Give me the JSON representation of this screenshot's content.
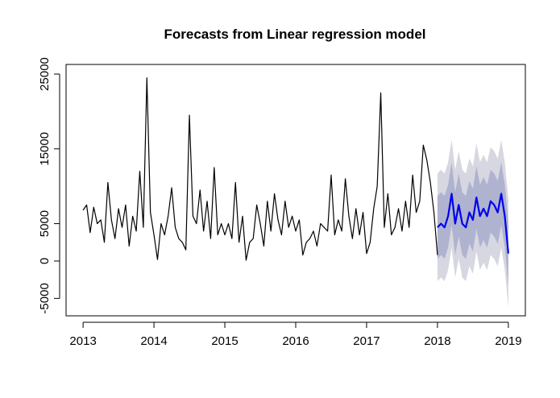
{
  "chart_data": {
    "type": "line",
    "title": "Forecasts from Linear regression model",
    "xlim": [
      2012.76,
      2019.24
    ],
    "ylim": [
      -7330,
      26290
    ],
    "xticks": [
      2013,
      2014,
      2015,
      2016,
      2017,
      2018,
      2019
    ],
    "yticks": [
      -5000,
      0,
      5000,
      15000,
      25000
    ],
    "series": [
      {
        "color": "#000000",
        "x": [
          2013.0,
          2013.05,
          2013.1,
          2013.15,
          2013.2,
          2013.25,
          2013.3,
          2013.35,
          2013.4,
          2013.45,
          2013.5,
          2013.55,
          2013.6,
          2013.65,
          2013.7,
          2013.75,
          2013.8,
          2013.85,
          2013.9,
          2013.95,
          2014.0,
          2014.05,
          2014.1,
          2014.15,
          2014.2,
          2014.25,
          2014.3,
          2014.35,
          2014.4,
          2014.45,
          2014.5,
          2014.55,
          2014.6,
          2014.65,
          2014.7,
          2014.75,
          2014.8,
          2014.85,
          2014.9,
          2014.95,
          2015.0,
          2015.05,
          2015.1,
          2015.15,
          2015.2,
          2015.25,
          2015.3,
          2015.35,
          2015.4,
          2015.45,
          2015.5,
          2015.55,
          2015.6,
          2015.65,
          2015.7,
          2015.75,
          2015.8,
          2015.85,
          2015.9,
          2015.95,
          2016.0,
          2016.05,
          2016.1,
          2016.15,
          2016.2,
          2016.25,
          2016.3,
          2016.35,
          2016.4,
          2016.45,
          2016.5,
          2016.55,
          2016.6,
          2016.65,
          2016.7,
          2016.75,
          2016.8,
          2016.85,
          2016.9,
          2016.95,
          2017.0,
          2017.05,
          2017.1,
          2017.15,
          2017.2,
          2017.25,
          2017.3,
          2017.35,
          2017.4,
          2017.45,
          2017.5,
          2017.55,
          2017.6,
          2017.65,
          2017.7,
          2017.75,
          2017.8,
          2017.85,
          2017.9,
          2017.95,
          2018.0
        ],
        "values": [
          6800,
          7500,
          3800,
          7200,
          5000,
          5500,
          2500,
          10500,
          5500,
          3000,
          7000,
          4500,
          7500,
          2000,
          6000,
          4000,
          12000,
          4500,
          24500,
          6500,
          3500,
          200,
          5000,
          3500,
          6000,
          9800,
          4500,
          3000,
          2500,
          1500,
          19500,
          6000,
          5000,
          9500,
          4000,
          8000,
          3000,
          12500,
          3500,
          5000,
          3500,
          5000,
          3000,
          10500,
          2500,
          6000,
          100,
          2500,
          3000,
          7500,
          5000,
          2000,
          8000,
          4000,
          9000,
          5500,
          3500,
          8000,
          4500,
          6000,
          4000,
          5500,
          800,
          2500,
          3000,
          4000,
          2000,
          5000,
          4500,
          4000,
          11500,
          3500,
          5500,
          4000,
          11000,
          6000,
          3000,
          7000,
          3500,
          6500,
          1000,
          2500,
          7000,
          10000,
          22500,
          4500,
          9000,
          3500,
          4500,
          7000,
          4000,
          8000,
          4500,
          11500,
          6500,
          8000,
          15500,
          13500,
          10500,
          6500,
          800
        ]
      },
      {
        "color": "#0000ee",
        "x": [
          2018.0,
          2018.05,
          2018.1,
          2018.15,
          2018.2,
          2018.25,
          2018.3,
          2018.35,
          2018.4,
          2018.45,
          2018.5,
          2018.55,
          2018.6,
          2018.65,
          2018.7,
          2018.75,
          2018.8,
          2018.85,
          2018.9,
          2018.95,
          2019.0
        ],
        "values": [
          4500,
          5000,
          4500,
          6000,
          9000,
          5000,
          7500,
          5000,
          4500,
          6500,
          5500,
          8500,
          6000,
          7000,
          6000,
          8000,
          7500,
          6500,
          9000,
          6000,
          1000
        ]
      }
    ],
    "intervals": [
      {
        "color": "#d6d7e1",
        "lower": [
          -2700,
          -2200,
          -2700,
          -1200,
          1800,
          -2200,
          300,
          -2200,
          -2700,
          -700,
          -1700,
          1300,
          -1200,
          -200,
          -1200,
          800,
          300,
          -700,
          1800,
          -1200,
          -6200
        ],
        "upper": [
          11700,
          12200,
          11700,
          13200,
          16200,
          12200,
          14700,
          12200,
          11700,
          13700,
          12700,
          15700,
          13200,
          14200,
          13200,
          15200,
          14700,
          13700,
          16200,
          13200,
          8200
        ]
      },
      {
        "color": "#afb3cf",
        "lower": [
          300,
          800,
          300,
          1800,
          4800,
          800,
          3300,
          800,
          300,
          2300,
          1300,
          4300,
          1800,
          2800,
          1800,
          3800,
          3300,
          2300,
          4800,
          1800,
          -3200
        ],
        "upper": [
          8700,
          9200,
          8700,
          10200,
          13200,
          9200,
          11700,
          9200,
          8700,
          10700,
          9700,
          12700,
          10200,
          11200,
          10200,
          12200,
          11700,
          10700,
          13200,
          10200,
          5200
        ]
      }
    ]
  }
}
